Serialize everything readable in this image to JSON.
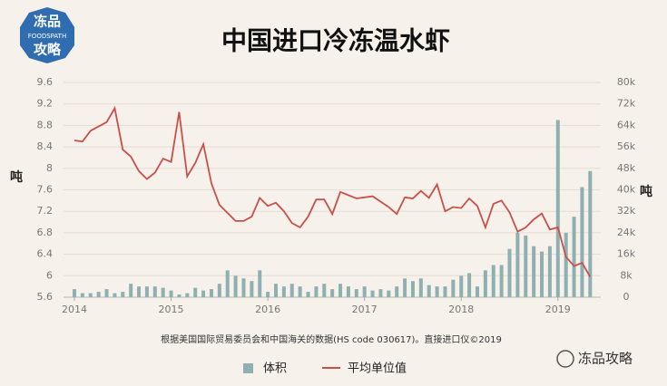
{
  "logo": {
    "top": "冻品",
    "middle": "FOODSPATH",
    "bottom": "攻略"
  },
  "watermark": "冻品攻略",
  "chart_data": {
    "type": "combo",
    "title": "中国进口冷冻温水虾",
    "ylabel": "吨",
    "y2label": "吨",
    "source": "根据美国国际贸易委员会和中国海关的数据(HS code 030617)。直接进口仪©2019",
    "categories": [
      "2014",
      null,
      null,
      null,
      null,
      null,
      null,
      null,
      null,
      null,
      null,
      null,
      "2015",
      null,
      null,
      null,
      null,
      null,
      null,
      null,
      null,
      null,
      null,
      null,
      "2016",
      null,
      null,
      null,
      null,
      null,
      null,
      null,
      null,
      null,
      null,
      null,
      "2017",
      null,
      null,
      null,
      null,
      null,
      null,
      null,
      null,
      null,
      null,
      null,
      "2018",
      null,
      null,
      null,
      null,
      null,
      null,
      null,
      null,
      null,
      null,
      null,
      "2019",
      null,
      null,
      null,
      null
    ],
    "series": [
      {
        "name": "体积",
        "type": "bar",
        "axis": "y2",
        "color": "#8fb0b0",
        "values": [
          3000,
          1500,
          1500,
          2000,
          3000,
          1500,
          2000,
          5000,
          4000,
          4000,
          4000,
          3500,
          2500,
          1000,
          1500,
          3500,
          2500,
          3000,
          5000,
          10000,
          8000,
          7000,
          6000,
          10000,
          2000,
          5000,
          4000,
          5000,
          4000,
          2000,
          4000,
          5000,
          3000,
          5000,
          4000,
          3000,
          4000,
          2500,
          3000,
          2500,
          4000,
          7000,
          6000,
          7000,
          4500,
          4000,
          4000,
          6500,
          8000,
          9000,
          4000,
          10000,
          12000,
          12000,
          18000,
          24000,
          23000,
          19000,
          17000,
          19000,
          66000,
          24000,
          30000,
          41000,
          47000
        ]
      },
      {
        "name": "平均单位值",
        "type": "line",
        "color": "#c9504a",
        "values": [
          8.52,
          8.5,
          8.7,
          8.78,
          8.86,
          9.12,
          8.35,
          8.22,
          7.95,
          7.8,
          7.92,
          8.18,
          8.12,
          9.05,
          7.85,
          8.1,
          8.45,
          7.72,
          7.32,
          7.17,
          7.02,
          7.02,
          7.1,
          7.45,
          7.3,
          7.36,
          7.2,
          6.98,
          6.9,
          7.1,
          7.42,
          7.42,
          7.15,
          7.56,
          7.5,
          7.44,
          7.46,
          7.48,
          7.38,
          7.28,
          7.15,
          7.46,
          7.44,
          7.58,
          7.45,
          7.7,
          7.2,
          7.28,
          7.26,
          7.44,
          7.3,
          6.9,
          7.34,
          7.4,
          7.18,
          6.82,
          6.9,
          7.05,
          7.16,
          6.86,
          6.9,
          6.35,
          6.18,
          6.24,
          5.98
        ]
      }
    ],
    "ylim": [
      5.6,
      9.6
    ],
    "yticks": [
      5.6,
      6,
      6.4,
      6.8,
      7.2,
      7.6,
      8,
      8.4,
      8.8,
      9.2,
      9.6
    ],
    "y2lim": [
      0,
      80000
    ],
    "y2ticks": [
      0,
      {
        "value": 8000,
        "label": "8k"
      },
      {
        "value": 16000,
        "label": "16k"
      },
      {
        "value": 24000,
        "label": "24k"
      },
      {
        "value": 32000,
        "label": "32k"
      },
      {
        "value": 40000,
        "label": "40k"
      },
      {
        "value": 48000,
        "label": "48k"
      },
      {
        "value": 56000,
        "label": "56k"
      },
      {
        "value": 64000,
        "label": "64k"
      },
      {
        "value": 72000,
        "label": "72k"
      },
      {
        "value": 80000,
        "label": "80k"
      }
    ],
    "grid": true
  }
}
